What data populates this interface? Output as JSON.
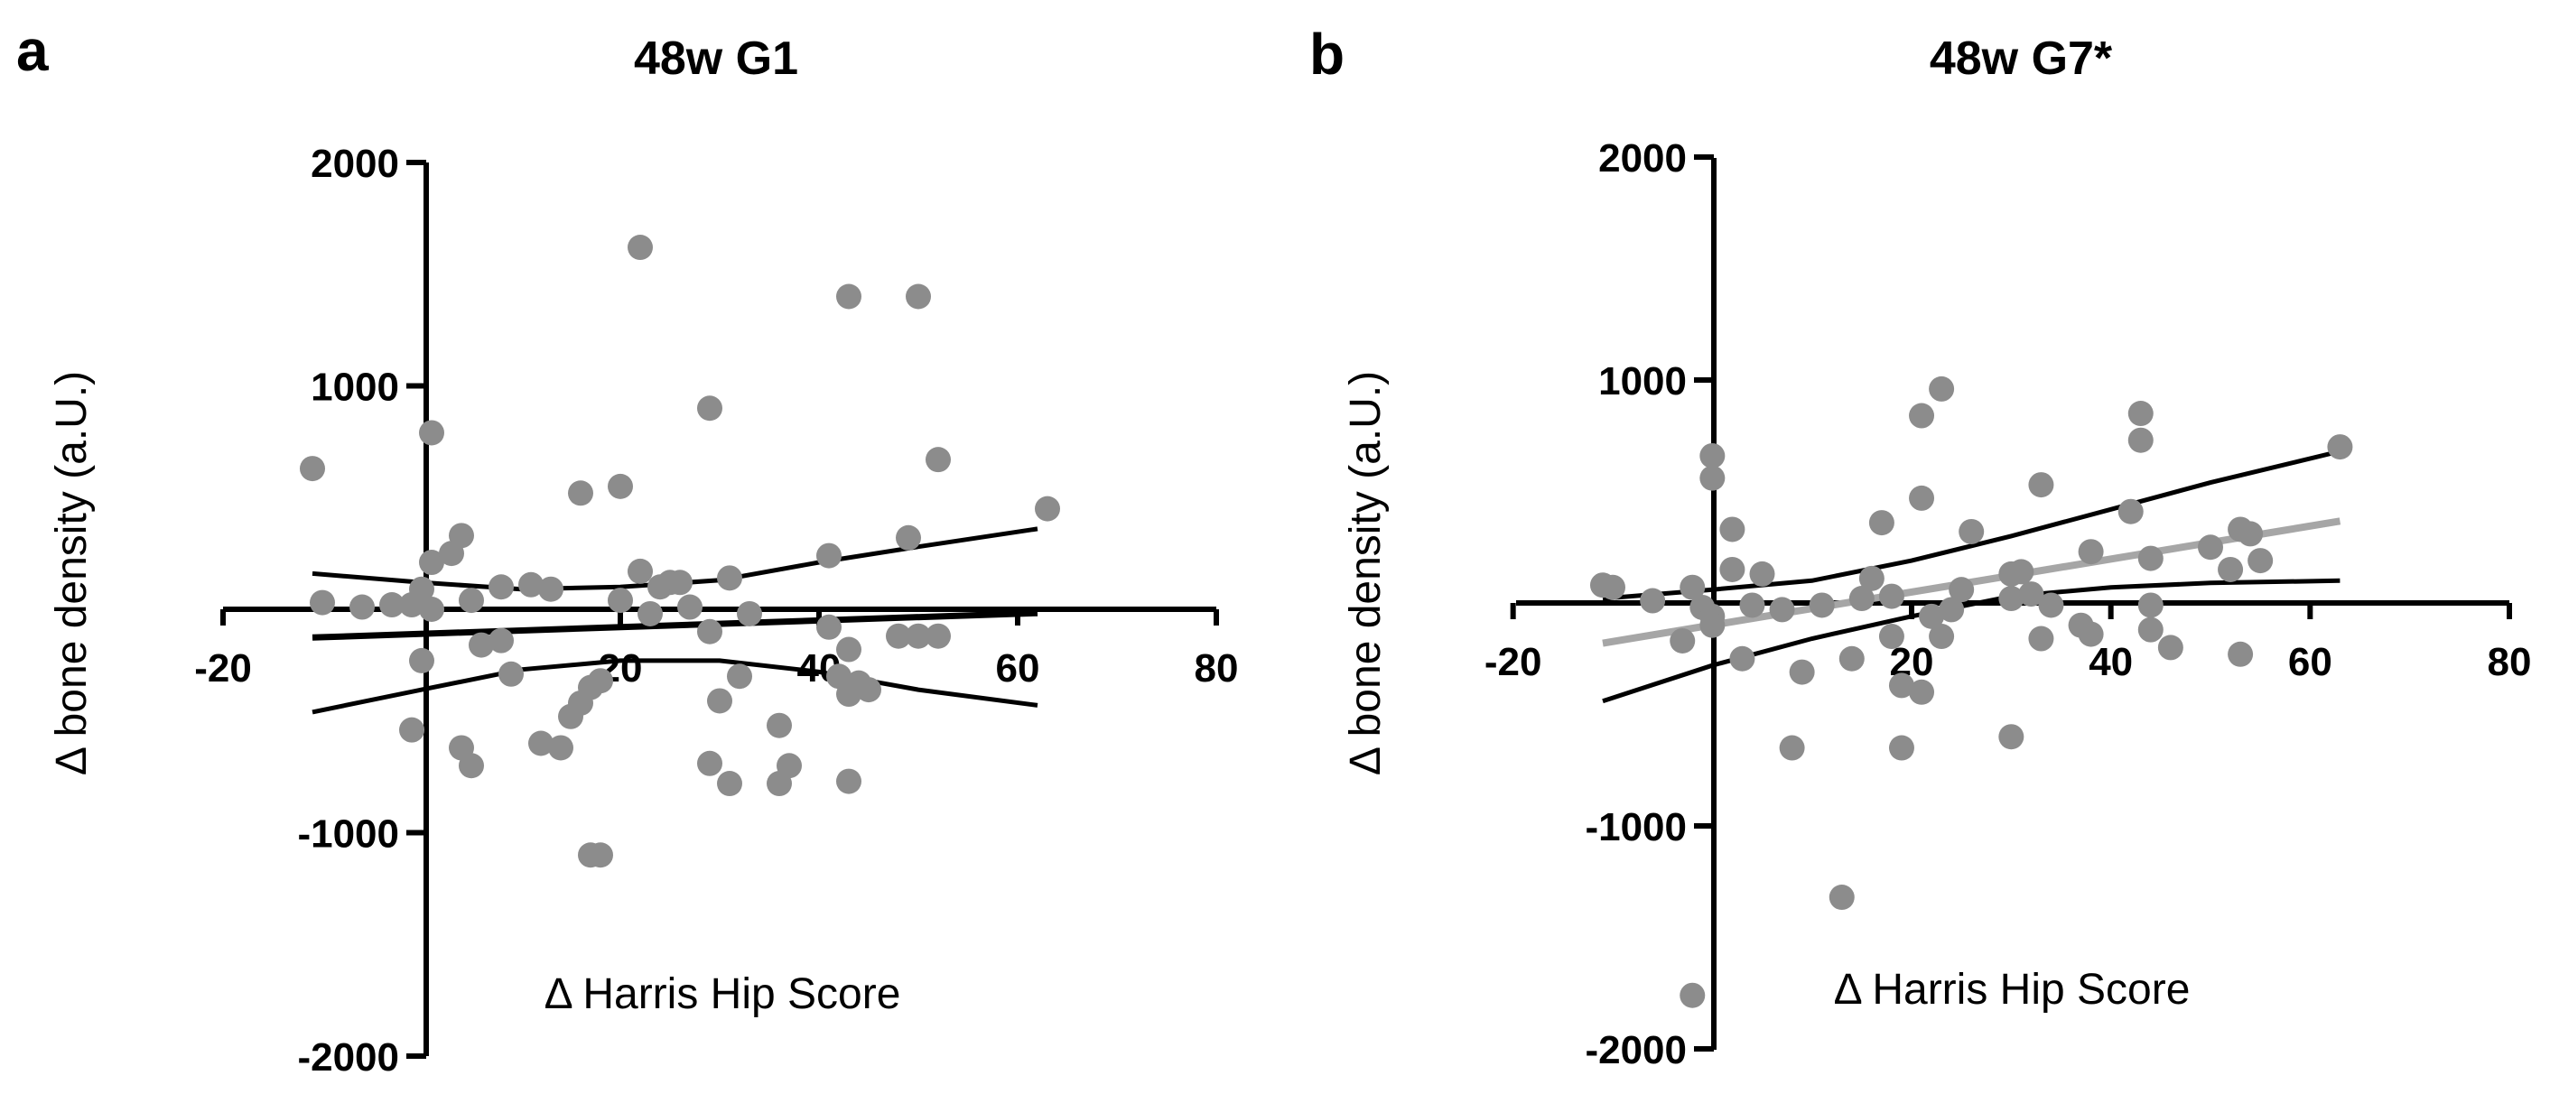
{
  "chart_data": [
    {
      "panel": "a",
      "type": "scatter",
      "title": "48w G1",
      "xlabel": "Δ Harris Hip Score",
      "ylabel": "Δ bone density (a.U.)",
      "xlim": [
        -20,
        80
      ],
      "ylim": [
        -2000,
        2000
      ],
      "xticks": [
        -20,
        20,
        40,
        60,
        80
      ],
      "xtick_labels": [
        "-20",
        "20",
        "40",
        "60",
        "80"
      ],
      "yticks": [
        -2000,
        -1000,
        1000,
        2000
      ],
      "ytick_labels": [
        "-2000",
        "-1000",
        "1000",
        "2000"
      ],
      "point_color": "#8c8c8c",
      "line_color": "#000000",
      "points": [
        [
          -11,
          630
        ],
        [
          -10,
          30
        ],
        [
          -6,
          10
        ],
        [
          -3,
          20
        ],
        [
          -1,
          20
        ],
        [
          -1,
          -540
        ],
        [
          0,
          -230
        ],
        [
          0,
          90
        ],
        [
          1,
          210
        ],
        [
          1,
          790
        ],
        [
          1,
          0
        ],
        [
          3,
          250
        ],
        [
          4,
          -620
        ],
        [
          4,
          330
        ],
        [
          5,
          -700
        ],
        [
          5,
          40
        ],
        [
          6,
          -160
        ],
        [
          8,
          100
        ],
        [
          8,
          -140
        ],
        [
          9,
          -290
        ],
        [
          11,
          110
        ],
        [
          12,
          -600
        ],
        [
          13,
          90
        ],
        [
          14,
          -620
        ],
        [
          15,
          -480
        ],
        [
          16,
          -420
        ],
        [
          16,
          520
        ],
        [
          17,
          -350
        ],
        [
          17,
          -1100
        ],
        [
          18,
          -320
        ],
        [
          18,
          -1100
        ],
        [
          20,
          550
        ],
        [
          20,
          40
        ],
        [
          22,
          1620
        ],
        [
          22,
          170
        ],
        [
          23,
          -20
        ],
        [
          24,
          100
        ],
        [
          25,
          120
        ],
        [
          26,
          120
        ],
        [
          27,
          10
        ],
        [
          29,
          900
        ],
        [
          29,
          -690
        ],
        [
          29,
          -100
        ],
        [
          30,
          -410
        ],
        [
          31,
          140
        ],
        [
          31,
          -780
        ],
        [
          32,
          -300
        ],
        [
          33,
          -20
        ],
        [
          36,
          -520
        ],
        [
          36,
          -780
        ],
        [
          37,
          -700
        ],
        [
          41,
          240
        ],
        [
          41,
          -80
        ],
        [
          42,
          -300
        ],
        [
          43,
          1400
        ],
        [
          43,
          -180
        ],
        [
          43,
          -770
        ],
        [
          43,
          -380
        ],
        [
          44,
          -330
        ],
        [
          45,
          -360
        ],
        [
          48,
          -120
        ],
        [
          49,
          320
        ],
        [
          50,
          1400
        ],
        [
          50,
          -120
        ],
        [
          52,
          670
        ],
        [
          52,
          -120
        ],
        [
          63,
          450
        ]
      ],
      "fit": {
        "slope": 1.5,
        "intercept": -110
      },
      "ci": {
        "upper": [
          [
            -11,
            160
          ],
          [
            0,
            120
          ],
          [
            10,
            90
          ],
          [
            20,
            100
          ],
          [
            30,
            130
          ],
          [
            40,
            210
          ],
          [
            50,
            280
          ],
          [
            62,
            360
          ]
        ],
        "lower": [
          [
            -11,
            -460
          ],
          [
            0,
            -360
          ],
          [
            10,
            -270
          ],
          [
            20,
            -230
          ],
          [
            30,
            -230
          ],
          [
            40,
            -280
          ],
          [
            50,
            -360
          ],
          [
            62,
            -430
          ]
        ]
      }
    },
    {
      "panel": "b",
      "type": "scatter",
      "title": "48w G7*",
      "xlabel": "Δ Harris Hip Score",
      "ylabel": "Δ bone density (a.U.)",
      "xlim": [
        -20,
        80
      ],
      "ylim": [
        -2000,
        2000
      ],
      "xticks": [
        -20,
        20,
        40,
        60,
        80
      ],
      "xtick_labels": [
        "-20",
        "20",
        "40",
        "60",
        "80"
      ],
      "yticks": [
        -2000,
        -1000,
        1000,
        2000
      ],
      "ytick_labels": [
        "-2000",
        "-1000",
        "1000",
        "2000"
      ],
      "point_color": "#8c8c8c",
      "line_color": "#000000",
      "fit_color": "#a6a6a6",
      "points": [
        [
          -11,
          80
        ],
        [
          -10,
          70
        ],
        [
          -6,
          10
        ],
        [
          -3,
          -170
        ],
        [
          -2,
          70
        ],
        [
          -2,
          -1760
        ],
        [
          -1,
          -20
        ],
        [
          0,
          660
        ],
        [
          0,
          560
        ],
        [
          0,
          -60
        ],
        [
          0,
          -100
        ],
        [
          2,
          150
        ],
        [
          2,
          330
        ],
        [
          3,
          -250
        ],
        [
          4,
          -10
        ],
        [
          5,
          130
        ],
        [
          7,
          -30
        ],
        [
          8,
          -650
        ],
        [
          9,
          -310
        ],
        [
          11,
          -10
        ],
        [
          13,
          -1320
        ],
        [
          14,
          -250
        ],
        [
          15,
          20
        ],
        [
          16,
          110
        ],
        [
          17,
          360
        ],
        [
          18,
          30
        ],
        [
          18,
          -150
        ],
        [
          19,
          -650
        ],
        [
          19,
          -370
        ],
        [
          21,
          840
        ],
        [
          21,
          470
        ],
        [
          21,
          -400
        ],
        [
          22,
          -60
        ],
        [
          23,
          960
        ],
        [
          23,
          -150
        ],
        [
          24,
          -30
        ],
        [
          25,
          60
        ],
        [
          26,
          320
        ],
        [
          30,
          130
        ],
        [
          30,
          20
        ],
        [
          30,
          -600
        ],
        [
          31,
          140
        ],
        [
          32,
          40
        ],
        [
          33,
          530
        ],
        [
          33,
          -160
        ],
        [
          34,
          -10
        ],
        [
          37,
          -100
        ],
        [
          38,
          230
        ],
        [
          38,
          -140
        ],
        [
          42,
          410
        ],
        [
          43,
          850
        ],
        [
          43,
          730
        ],
        [
          44,
          200
        ],
        [
          44,
          -10
        ],
        [
          44,
          -120
        ],
        [
          46,
          -200
        ],
        [
          50,
          250
        ],
        [
          52,
          150
        ],
        [
          53,
          330
        ],
        [
          53,
          -230
        ],
        [
          54,
          310
        ],
        [
          55,
          190
        ],
        [
          63,
          700
        ]
      ],
      "fit": {
        "slope": 7.4,
        "intercept": -99
      },
      "ci": {
        "upper": [
          [
            -11,
            20
          ],
          [
            0,
            60
          ],
          [
            10,
            100
          ],
          [
            20,
            190
          ],
          [
            30,
            300
          ],
          [
            40,
            420
          ],
          [
            50,
            540
          ],
          [
            63,
            680
          ]
        ],
        "lower": [
          [
            -11,
            -440
          ],
          [
            0,
            -280
          ],
          [
            10,
            -160
          ],
          [
            20,
            -60
          ],
          [
            30,
            30
          ],
          [
            40,
            70
          ],
          [
            50,
            90
          ],
          [
            63,
            100
          ]
        ]
      }
    }
  ]
}
